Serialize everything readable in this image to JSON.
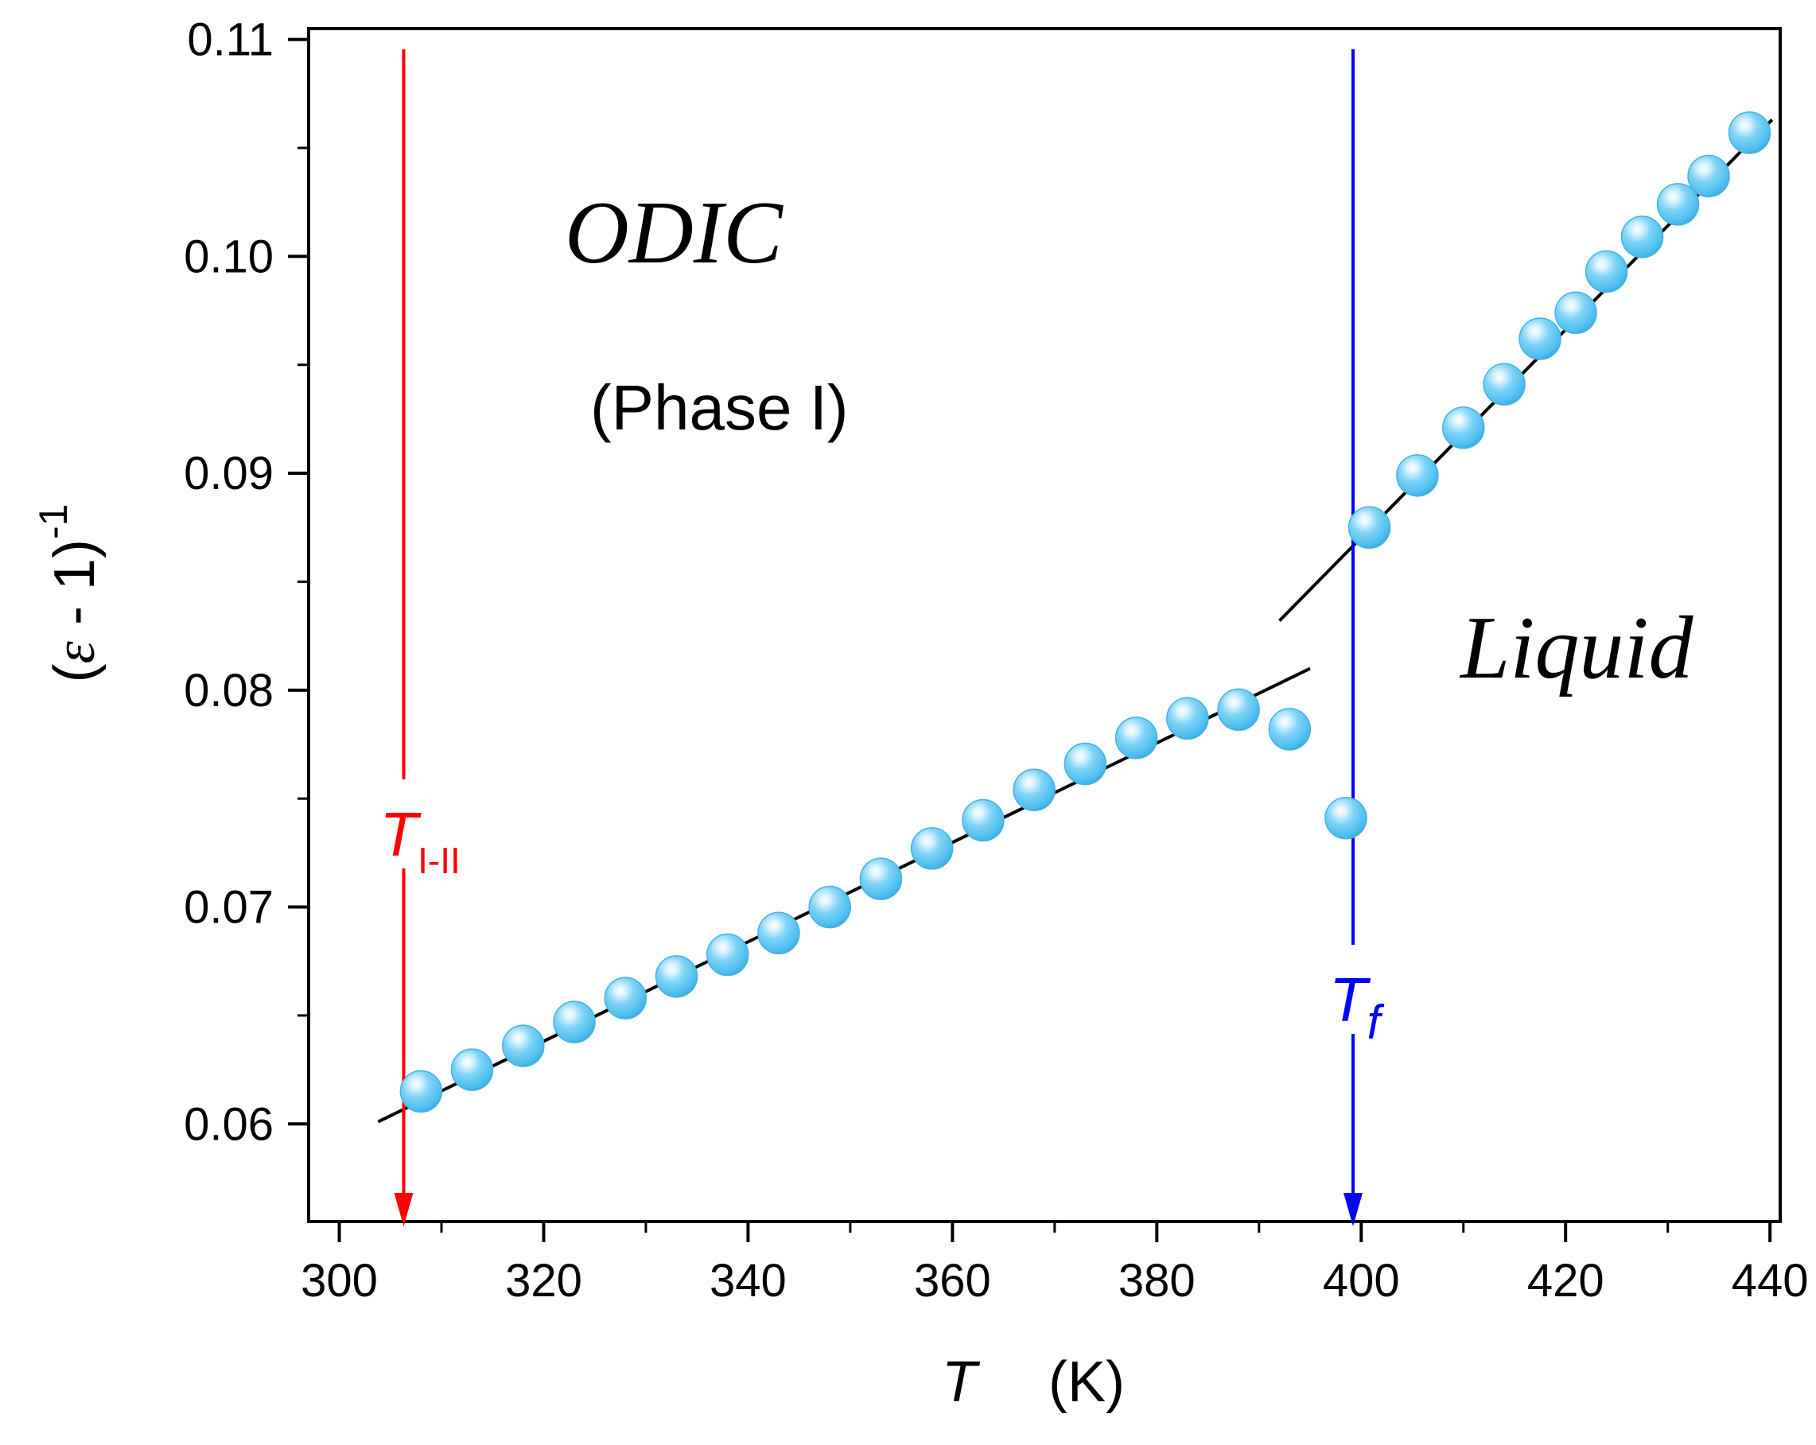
{
  "chart_data": {
    "type": "scatter",
    "title": "",
    "xlabel": "T",
    "xlabel_unit": "(K)",
    "ylabel_paren_open": "(",
    "ylabel_eps": "ε",
    "ylabel_mid": " - 1)",
    "ylabel_sup": "-1",
    "xlim": [
      297,
      441
    ],
    "ylim": [
      0.0555,
      0.1105
    ],
    "x_ticks": [
      300,
      320,
      340,
      360,
      380,
      400,
      420,
      440
    ],
    "x_tick_labels": [
      "300",
      "320",
      "340",
      "360",
      "380",
      "400",
      "420",
      "440"
    ],
    "x_minor_ticks": [
      310,
      330,
      350,
      370,
      390,
      410,
      430
    ],
    "y_ticks": [
      0.06,
      0.07,
      0.08,
      0.09,
      0.1,
      0.11
    ],
    "y_tick_labels": [
      "0.06",
      "0.07",
      "0.08",
      "0.09",
      "0.10",
      "0.11"
    ],
    "y_minor_ticks": [
      0.065,
      0.075,
      0.085,
      0.095,
      0.105
    ],
    "series": [
      {
        "name": "data",
        "color": "#5bc8f5",
        "points": [
          {
            "x": 308.0,
            "y": 0.0615
          },
          {
            "x": 313.0,
            "y": 0.0625
          },
          {
            "x": 318.0,
            "y": 0.0636
          },
          {
            "x": 323.0,
            "y": 0.0647
          },
          {
            "x": 328.0,
            "y": 0.0658
          },
          {
            "x": 333.0,
            "y": 0.0668
          },
          {
            "x": 338.0,
            "y": 0.0678
          },
          {
            "x": 343.0,
            "y": 0.0688
          },
          {
            "x": 348.0,
            "y": 0.07
          },
          {
            "x": 353.0,
            "y": 0.0713
          },
          {
            "x": 358.0,
            "y": 0.0727
          },
          {
            "x": 363.0,
            "y": 0.074
          },
          {
            "x": 368.0,
            "y": 0.0754
          },
          {
            "x": 373.0,
            "y": 0.0766
          },
          {
            "x": 378.0,
            "y": 0.0778
          },
          {
            "x": 383.0,
            "y": 0.0787
          },
          {
            "x": 388.0,
            "y": 0.0791
          },
          {
            "x": 393.0,
            "y": 0.0782
          },
          {
            "x": 398.5,
            "y": 0.0741
          },
          {
            "x": 400.8,
            "y": 0.0875
          },
          {
            "x": 405.5,
            "y": 0.0899
          },
          {
            "x": 410.0,
            "y": 0.0921
          },
          {
            "x": 414.0,
            "y": 0.0941
          },
          {
            "x": 417.5,
            "y": 0.0962
          },
          {
            "x": 421.0,
            "y": 0.0974
          },
          {
            "x": 424.0,
            "y": 0.0993
          },
          {
            "x": 427.5,
            "y": 0.1009
          },
          {
            "x": 431.0,
            "y": 0.1024
          },
          {
            "x": 434.0,
            "y": 0.1037
          },
          {
            "x": 438.0,
            "y": 0.1057
          }
        ]
      }
    ],
    "fit_lines": [
      {
        "name": "fit-solid",
        "color": "#000000",
        "x": [
          303.8,
          395.0
        ],
        "y": [
          0.0601,
          0.081
        ]
      },
      {
        "name": "fit-liquid",
        "color": "#000000",
        "x": [
          392.0,
          440.2
        ],
        "y": [
          0.0832,
          0.1063
        ]
      }
    ],
    "markers": [
      {
        "name": "T-I-II",
        "x": 306.3,
        "color": "#ff0000",
        "label_main": "T",
        "label_sub": "I-II"
      },
      {
        "name": "T-f",
        "x": 399.2,
        "color": "#0000ff",
        "label_main": "T",
        "label_sub": "f"
      }
    ],
    "annotations": {
      "odic": "ODIC",
      "phase": "(Phase I)",
      "liquid": "Liquid"
    }
  }
}
